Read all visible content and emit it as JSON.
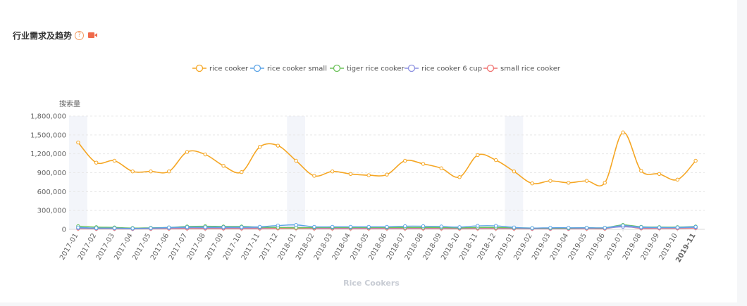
{
  "header": {
    "title": "行业需求及趋势",
    "help_icon": "question-circle-icon",
    "video_icon": "video-camera-icon"
  },
  "colors": {
    "series": [
      "#f5a623",
      "#5ba4e6",
      "#6cc25a",
      "#8b8fe0",
      "#f0716f"
    ],
    "grid": "#e8e8e8",
    "band": "#f3f5fa"
  },
  "chart_data": {
    "type": "line",
    "title": "",
    "xlabel": "Rice Cookers",
    "ylabel": "搜索量",
    "ylim": [
      0,
      1800000
    ],
    "yticks": [
      "0",
      "300,000",
      "600,000",
      "900,000",
      "1,200,000",
      "1,500,000",
      "1,800,000"
    ],
    "grid": true,
    "legend": "top-center",
    "highlight_months": [
      "2017-01",
      "2018-01",
      "2019-01"
    ],
    "categories": [
      "2017-01",
      "2017-02",
      "2017-03",
      "2017-04",
      "2017-05",
      "2017-06",
      "2017-07",
      "2017-08",
      "2017-09",
      "2017-10",
      "2017-11",
      "2017-12",
      "2018-01",
      "2018-02",
      "2018-03",
      "2018-04",
      "2018-05",
      "2018-06",
      "2018-07",
      "2018-08",
      "2018-09",
      "2018-10",
      "2018-11",
      "2018-12",
      "2019-01",
      "2019-02",
      "2019-03",
      "2019-04",
      "2019-05",
      "2019-06",
      "2019-07",
      "2019-08",
      "2019-09",
      "2019-10",
      "2019-11"
    ],
    "series": [
      {
        "name": "rice cooker",
        "values": [
          1380000,
          1060000,
          1090000,
          920000,
          920000,
          920000,
          1230000,
          1190000,
          1010000,
          910000,
          1310000,
          1330000,
          1090000,
          850000,
          920000,
          880000,
          860000,
          870000,
          1090000,
          1040000,
          970000,
          830000,
          1180000,
          1100000,
          920000,
          730000,
          770000,
          740000,
          770000,
          740000,
          1540000,
          930000,
          880000,
          790000,
          1090000
        ]
      },
      {
        "name": "rice cooker small",
        "values": [
          30000,
          20000,
          20000,
          15000,
          20000,
          30000,
          35000,
          35000,
          35000,
          35000,
          40000,
          60000,
          70000,
          40000,
          40000,
          40000,
          40000,
          40000,
          50000,
          50000,
          45000,
          35000,
          55000,
          55000,
          30000,
          20000,
          25000,
          25000,
          25000,
          25000,
          60000,
          35000,
          30000,
          30000,
          40000
        ]
      },
      {
        "name": "tiger rice cooker",
        "values": [
          50000,
          35000,
          30000,
          20000,
          25000,
          30000,
          45000,
          50000,
          45000,
          45000,
          35000,
          30000,
          25000,
          30000,
          30000,
          30000,
          30000,
          30000,
          30000,
          30000,
          30000,
          25000,
          30000,
          30000,
          25000,
          20000,
          20000,
          20000,
          25000,
          25000,
          70000,
          40000,
          35000,
          35000,
          45000
        ]
      },
      {
        "name": "rice cooker 6 cup",
        "values": [
          20000,
          15000,
          15000,
          10000,
          15000,
          20000,
          25000,
          25000,
          25000,
          25000,
          25000,
          30000,
          30000,
          25000,
          25000,
          25000,
          25000,
          25000,
          25000,
          25000,
          25000,
          20000,
          25000,
          25000,
          20000,
          15000,
          15000,
          15000,
          20000,
          20000,
          40000,
          25000,
          25000,
          25000,
          30000
        ]
      },
      {
        "name": "small rice cooker",
        "values": [
          10000,
          8000,
          8000,
          6000,
          8000,
          10000,
          12000,
          12000,
          12000,
          12000,
          12000,
          15000,
          15000,
          12000,
          12000,
          12000,
          12000,
          12000,
          12000,
          12000,
          12000,
          10000,
          12000,
          12000,
          10000,
          8000,
          8000,
          8000,
          10000,
          10000,
          50000,
          15000,
          15000,
          15000,
          20000
        ]
      }
    ]
  }
}
